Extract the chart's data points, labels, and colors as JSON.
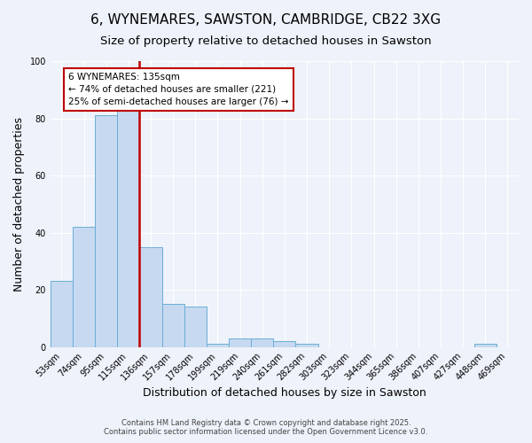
{
  "title": "6, WYNEMARES, SAWSTON, CAMBRIDGE, CB22 3XG",
  "subtitle": "Size of property relative to detached houses in Sawston",
  "xlabel": "Distribution of detached houses by size in Sawston",
  "ylabel": "Number of detached properties",
  "categories": [
    "53sqm",
    "74sqm",
    "95sqm",
    "115sqm",
    "136sqm",
    "157sqm",
    "178sqm",
    "199sqm",
    "219sqm",
    "240sqm",
    "261sqm",
    "282sqm",
    "303sqm",
    "323sqm",
    "344sqm",
    "365sqm",
    "386sqm",
    "407sqm",
    "427sqm",
    "448sqm",
    "469sqm"
  ],
  "values": [
    23,
    42,
    81,
    84,
    35,
    15,
    14,
    1,
    3,
    3,
    2,
    1,
    0,
    0,
    0,
    0,
    0,
    0,
    0,
    1,
    0
  ],
  "bar_color": "#c6d9f0",
  "bar_edge_color": "#6baed6",
  "marker_line_color": "#c00000",
  "annotation_text": "6 WYNEMARES: 135sqm\n← 74% of detached houses are smaller (221)\n25% of semi-detached houses are larger (76) →",
  "annotation_box_color": "#ffffff",
  "annotation_box_edge": "#c00000",
  "ylim": [
    0,
    100
  ],
  "background_color": "#eef2fa",
  "plot_background": "#eef2fa",
  "grid_color": "#ffffff",
  "footer1": "Contains HM Land Registry data © Crown copyright and database right 2025.",
  "footer2": "Contains public sector information licensed under the Open Government Licence v3.0.",
  "title_fontsize": 11,
  "subtitle_fontsize": 9.5,
  "tick_fontsize": 7,
  "label_fontsize": 9,
  "annotation_fontsize": 7.5
}
